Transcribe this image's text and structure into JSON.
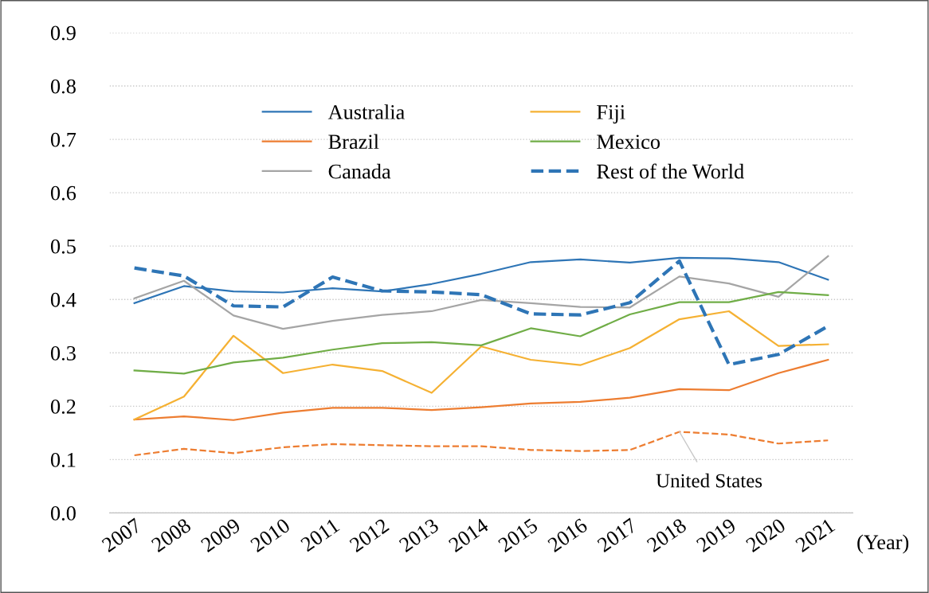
{
  "chart_data": {
    "type": "line",
    "xlabel": "(Year)",
    "categories": [
      "2007",
      "2008",
      "2009",
      "2010",
      "2011",
      "2012",
      "2013",
      "2014",
      "2015",
      "2016",
      "2017",
      "2018",
      "2019",
      "2020",
      "2021"
    ],
    "ylim": [
      0,
      0.9
    ],
    "yticks": [
      {
        "value": 0,
        "label": "0.0"
      },
      {
        "value": 0.1,
        "label": "0.1"
      },
      {
        "value": 0.2,
        "label": "0.2"
      },
      {
        "value": 0.3,
        "label": "0.3"
      },
      {
        "value": 0.4,
        "label": "0.4"
      },
      {
        "value": 0.5,
        "label": "0.5"
      },
      {
        "value": 0.6,
        "label": "0.6"
      },
      {
        "value": 0.7,
        "label": "0.7"
      },
      {
        "value": 0.8,
        "label": "0.8"
      },
      {
        "value": 0.9,
        "label": "0.9"
      }
    ],
    "grid": "y",
    "legend": "top",
    "marker": "none",
    "series": [
      {
        "name": "Australia",
        "color": "#2e75b6",
        "line_style": "solid",
        "values": [
          0.393,
          0.425,
          0.415,
          0.413,
          0.421,
          0.415,
          0.429,
          0.448,
          0.47,
          0.475,
          0.469,
          0.478,
          0.477,
          0.47,
          0.437
        ]
      },
      {
        "name": "Brazil",
        "color": "#ed7d31",
        "line_style": "solid",
        "values": [
          0.175,
          0.181,
          0.174,
          0.188,
          0.197,
          0.197,
          0.193,
          0.198,
          0.205,
          0.208,
          0.216,
          0.232,
          0.23,
          0.262,
          0.287
        ]
      },
      {
        "name": "Canada",
        "color": "#a5a5a5",
        "line_style": "solid",
        "values": [
          0.402,
          0.435,
          0.37,
          0.345,
          0.36,
          0.371,
          0.378,
          0.399,
          0.393,
          0.386,
          0.385,
          0.443,
          0.43,
          0.405,
          0.481
        ]
      },
      {
        "name": "Fiji",
        "color": "#f5b133",
        "line_style": "solid",
        "values": [
          0.175,
          0.218,
          0.332,
          0.262,
          0.278,
          0.266,
          0.225,
          0.312,
          0.287,
          0.277,
          0.309,
          0.363,
          0.378,
          0.313,
          0.316
        ]
      },
      {
        "name": "Mexico",
        "color": "#70ad47",
        "line_style": "solid",
        "values": [
          0.267,
          0.261,
          0.282,
          0.291,
          0.306,
          0.318,
          0.32,
          0.314,
          0.346,
          0.331,
          0.372,
          0.395,
          0.395,
          0.414,
          0.408
        ]
      },
      {
        "name": "Rest of the World",
        "color": "#2e75b6",
        "line_style": "dashed",
        "values": [
          0.459,
          0.444,
          0.388,
          0.386,
          0.442,
          0.416,
          0.414,
          0.409,
          0.373,
          0.371,
          0.394,
          0.472,
          0.278,
          0.297,
          0.35
        ]
      },
      {
        "color": "#ed7d31",
        "line_style": "dashed",
        "values": [
          0.108,
          0.12,
          0.112,
          0.123,
          0.129,
          0.127,
          0.125,
          0.125,
          0.118,
          0.116,
          0.118,
          0.152,
          0.147,
          0.13,
          0.136
        ]
      }
    ],
    "annotations": [
      {
        "text": "United States",
        "x": "2018",
        "y": 0.152
      }
    ]
  }
}
